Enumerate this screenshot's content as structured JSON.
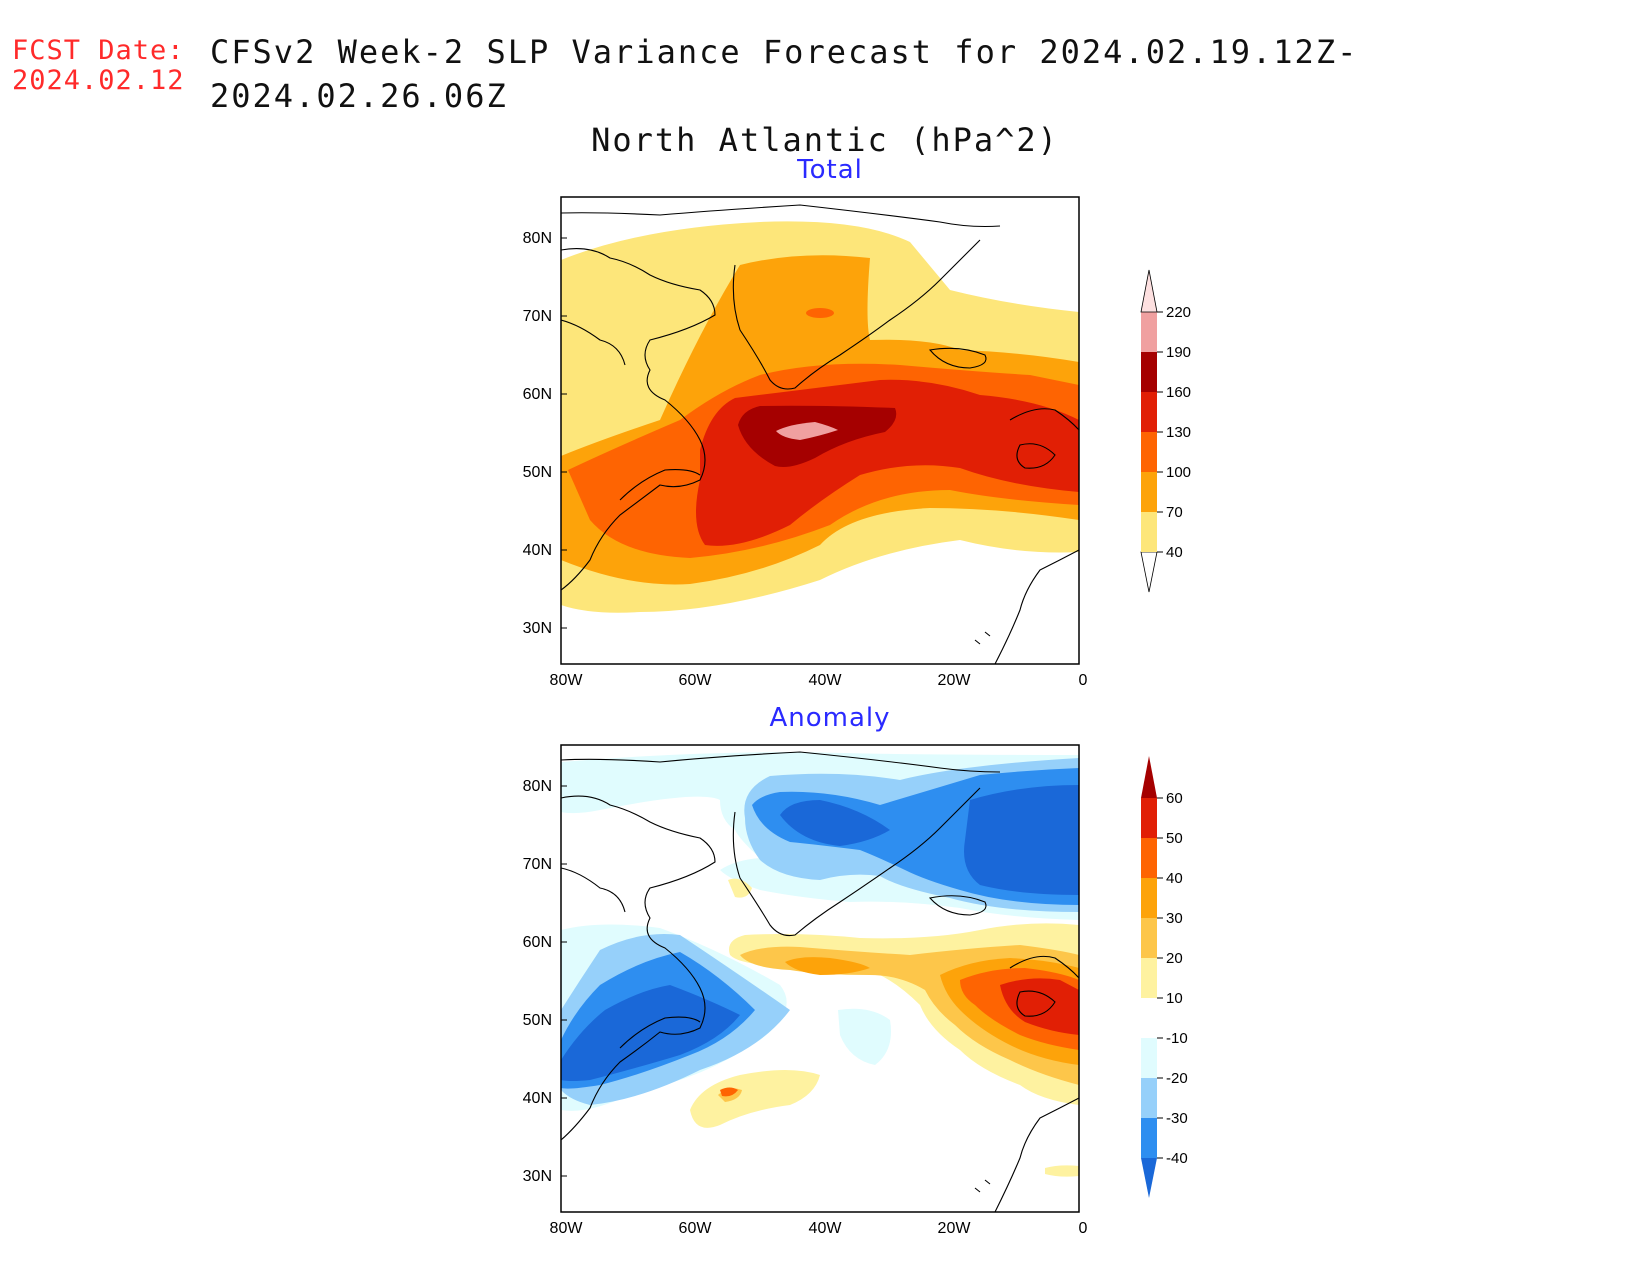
{
  "fcst": {
    "label": "FCST Date:",
    "date": "2024.02.12"
  },
  "title": {
    "line1": "CFSv2 Week-2 SLP Variance Forecast for 2024.02.19.12Z-2024.02.26.06Z",
    "line2": "North Atlantic (hPa^2)"
  },
  "map": {
    "lat_ticks": [
      "80N",
      "70N",
      "60N",
      "50N",
      "40N",
      "30N"
    ],
    "lon_ticks": [
      "80W",
      "60W",
      "40W",
      "20W",
      "0"
    ]
  },
  "panels": [
    {
      "title": "Total",
      "colorbar": {
        "levels": [
          "40",
          "70",
          "100",
          "130",
          "160",
          "190",
          "220"
        ],
        "colors": [
          "#fde67a",
          "#fda30a",
          "#fe6402",
          "#e11f05",
          "#a50000",
          "#f0a0a0",
          "#fde0e0"
        ]
      }
    },
    {
      "title": "Anomaly",
      "colorbar": {
        "levels": [
          "-40",
          "-30",
          "-20",
          "-10",
          "10",
          "20",
          "30",
          "40",
          "50",
          "60"
        ],
        "colors": [
          "#1a68d8",
          "#2e8ef0",
          "#96d0fa",
          "#e0fcfe",
          "#ffffff",
          "#fef2a0",
          "#fdc64a",
          "#fda30a",
          "#fe6402",
          "#e11f05",
          "#a50000"
        ]
      }
    }
  ]
}
